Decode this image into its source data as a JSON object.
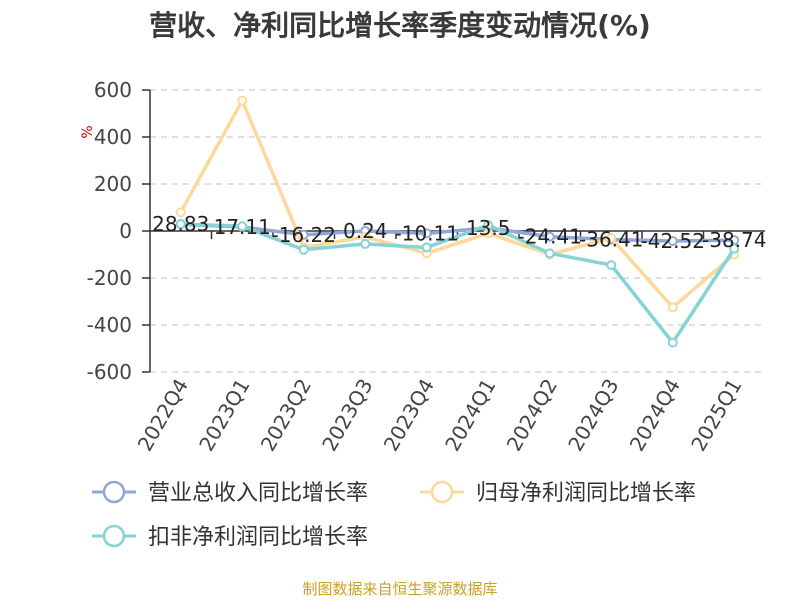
{
  "title": "营收、净利同比增长率季度变动情况(%)",
  "source": "制图数据来自恒生聚源数据库",
  "chart_data": {
    "type": "line",
    "title": "营收、净利同比增长率季度变动情况(%)",
    "ylabel": "%",
    "ylim": [
      -600,
      600
    ],
    "yticks": [
      600,
      400,
      200,
      0,
      -200,
      -400,
      -600
    ],
    "grid": true,
    "legend_position": "bottom",
    "categories": [
      "2022Q4",
      "2023Q1",
      "2023Q2",
      "2023Q3",
      "2023Q4",
      "2024Q1",
      "2024Q2",
      "2024Q3",
      "2024Q4",
      "2025Q1"
    ],
    "series": [
      {
        "name": "营业总收入同比增长率",
        "color": "#8fa8d8",
        "values": [
          28.83,
          17.11,
          -16.22,
          0.24,
          -10.11,
          13.5,
          -24.41,
          -36.41,
          -42.52,
          -38.74
        ],
        "labels": [
          "28.83",
          "17.11",
          "-16.22",
          "0.24",
          "-10.11",
          "13.5",
          "-24.41",
          "-36.41",
          "-42.52",
          "-38.74"
        ]
      },
      {
        "name": "归母净利润同比增长率",
        "color": "#fcd99b",
        "values": [
          80,
          555,
          -70,
          -25,
          -95,
          -10,
          -100,
          -30,
          -325,
          -100
        ]
      },
      {
        "name": "扣非净利润同比增长率",
        "color": "#86d3d6",
        "values": [
          30,
          20,
          -80,
          -55,
          -70,
          25,
          -95,
          -145,
          -475,
          -75
        ]
      }
    ]
  }
}
